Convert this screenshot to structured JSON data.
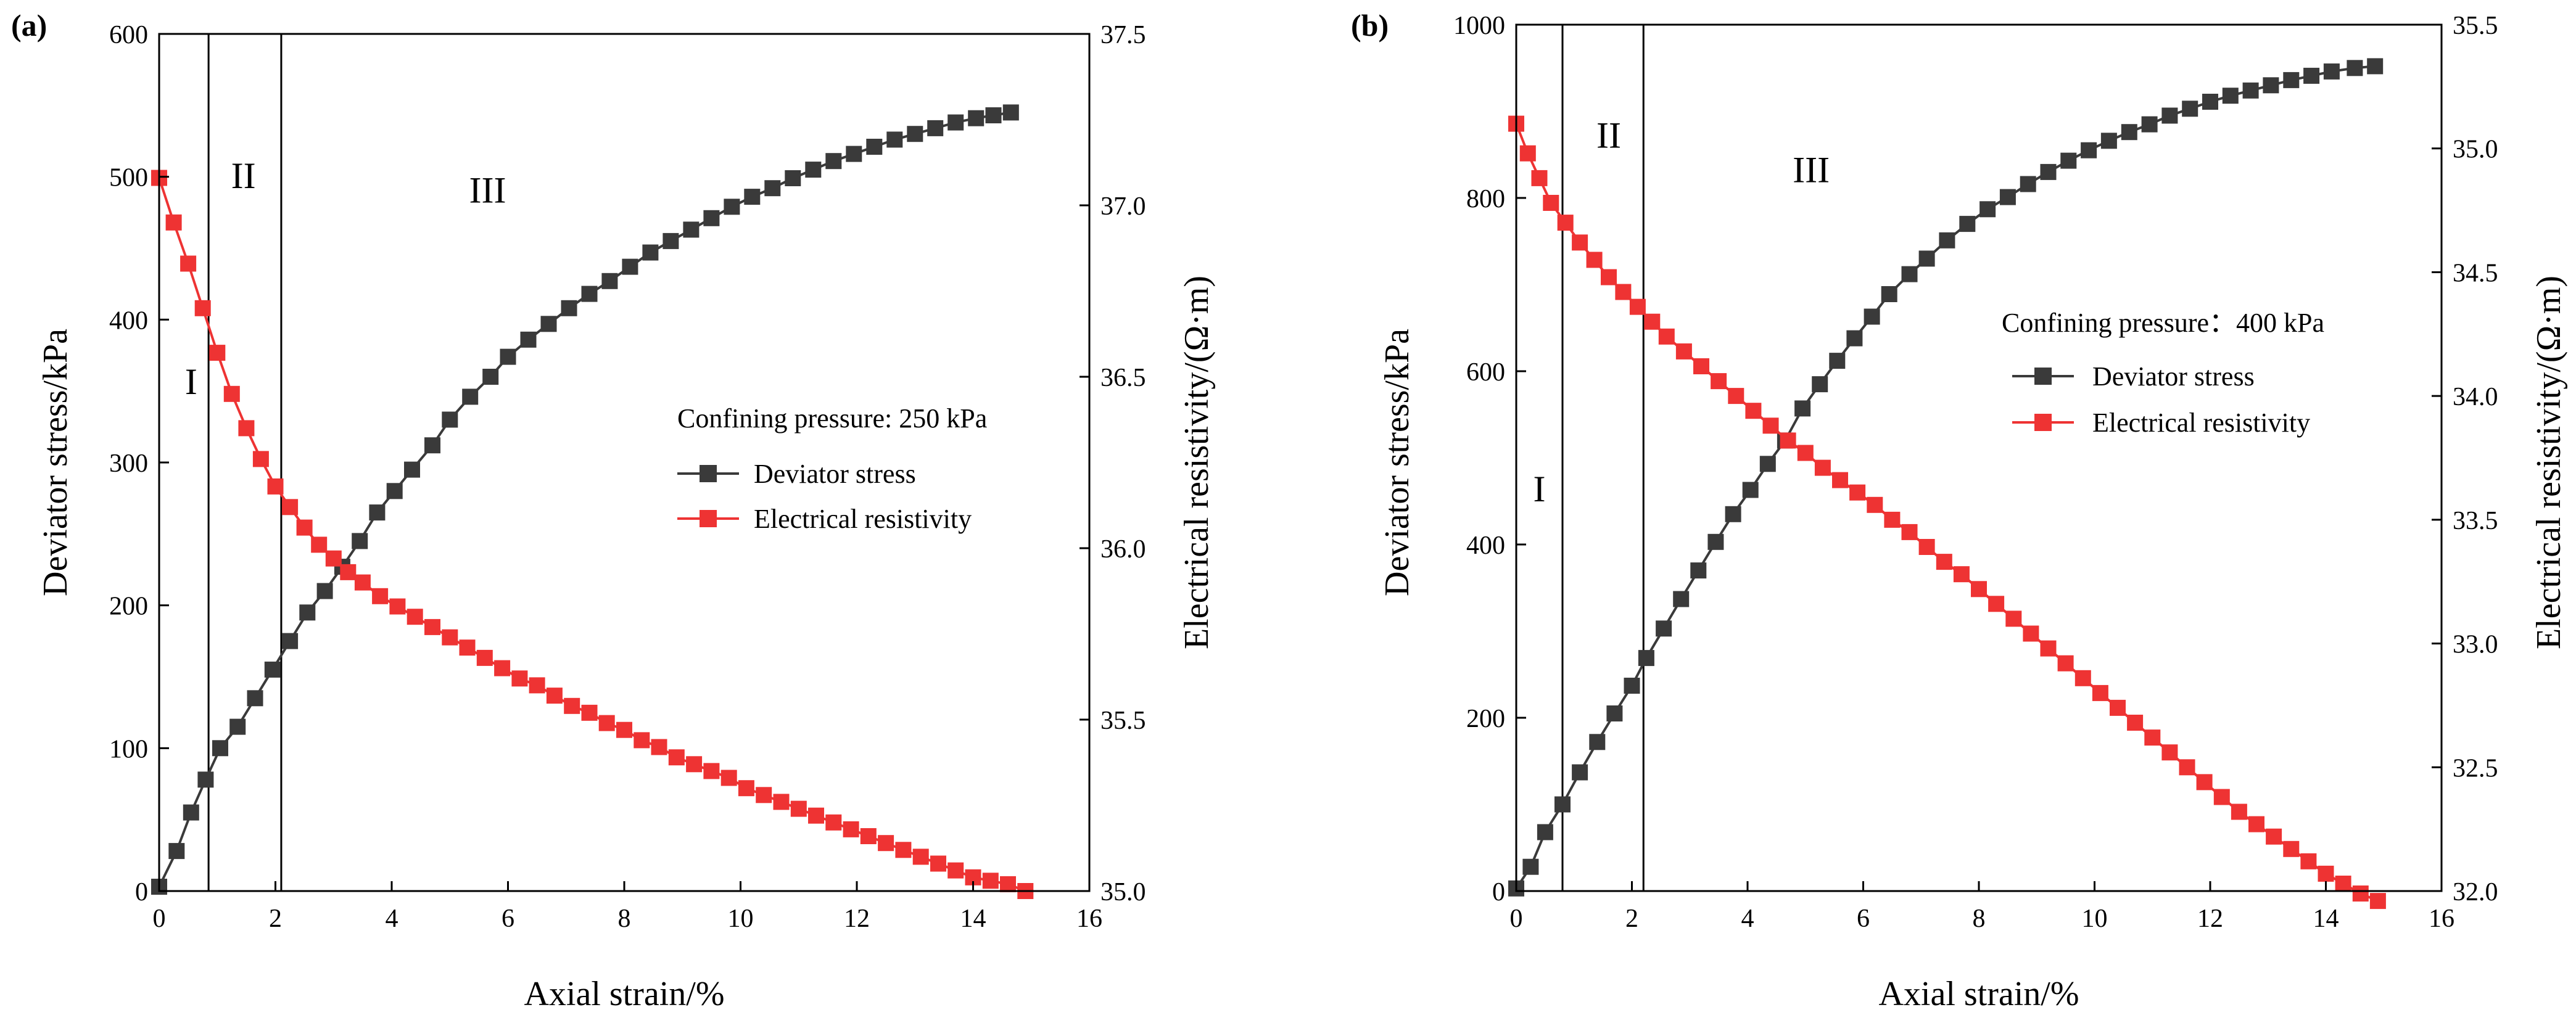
{
  "figure": {
    "description_labels": [
      "(a)",
      "(b)"
    ]
  },
  "colors": {
    "deviator": "#3a3a3a",
    "resistivity": "#ee3333",
    "axis": "#000000"
  },
  "chart_data": [
    {
      "type": "line",
      "panel_label": "(a)",
      "xlabel": "Axial strain/%",
      "ylabel_left": "Deviator stress/kPa",
      "ylabel_right": "Electrical resistivity/(Ω·m)",
      "xlim": [
        0,
        16
      ],
      "ylim_left": [
        0,
        600
      ],
      "ylim_right": [
        35.0,
        37.5
      ],
      "x_ticks": [
        "0",
        "2",
        "4",
        "6",
        "8",
        "10",
        "12",
        "14",
        "16"
      ],
      "y_left_ticks": [
        "0",
        "100",
        "200",
        "300",
        "400",
        "500",
        "600"
      ],
      "y_right_ticks": [
        "35.0",
        "35.5",
        "36.0",
        "36.5",
        "37.0",
        "37.5"
      ],
      "stage_boundaries": [
        0.85,
        2.1
      ],
      "stage_labels": [
        {
          "text": "I",
          "x": 0.55,
          "y_left": 348
        },
        {
          "text": "II",
          "x": 1.45,
          "y_left": 492
        },
        {
          "text": "III",
          "x": 5.65,
          "y_left": 482
        }
      ],
      "legend_title": "Confining pressure: 250 kPa",
      "series": [
        {
          "name": "Deviator stress",
          "axis": "left",
          "color": "#3a3a3a",
          "x": [
            0,
            0.3,
            0.55,
            0.8,
            1.05,
            1.35,
            1.65,
            1.95,
            2.25,
            2.55,
            2.85,
            3.15,
            3.45,
            3.75,
            4.05,
            4.35,
            4.7,
            5.0,
            5.35,
            5.7,
            6.0,
            6.35,
            6.7,
            7.05,
            7.4,
            7.75,
            8.1,
            8.45,
            8.8,
            9.15,
            9.5,
            9.85,
            10.2,
            10.55,
            10.9,
            11.25,
            11.6,
            11.95,
            12.3,
            12.65,
            13.0,
            13.35,
            13.7,
            14.05,
            14.35,
            14.65
          ],
          "y": [
            3,
            28,
            55,
            78,
            100,
            115,
            135,
            155,
            175,
            195,
            210,
            227,
            245,
            265,
            280,
            295,
            312,
            330,
            346,
            360,
            374,
            386,
            397,
            408,
            418,
            427,
            437,
            447,
            455,
            463,
            471,
            479,
            486,
            492,
            499,
            505,
            511,
            516,
            521,
            526,
            530,
            534,
            538,
            541,
            543,
            545
          ]
        },
        {
          "name": "Electrical resistivity",
          "axis": "right",
          "color": "#ee3333",
          "x": [
            0,
            0.25,
            0.5,
            0.75,
            1.0,
            1.25,
            1.5,
            1.75,
            2.0,
            2.25,
            2.5,
            2.75,
            3.0,
            3.25,
            3.5,
            3.8,
            4.1,
            4.4,
            4.7,
            5.0,
            5.3,
            5.6,
            5.9,
            6.2,
            6.5,
            6.8,
            7.1,
            7.4,
            7.7,
            8.0,
            8.3,
            8.6,
            8.9,
            9.2,
            9.5,
            9.8,
            10.1,
            10.4,
            10.7,
            11.0,
            11.3,
            11.6,
            11.9,
            12.2,
            12.5,
            12.8,
            13.1,
            13.4,
            13.7,
            14.0,
            14.3,
            14.6,
            14.9
          ],
          "y": [
            37.08,
            36.95,
            36.83,
            36.7,
            36.57,
            36.45,
            36.35,
            36.26,
            36.18,
            36.12,
            36.06,
            36.01,
            35.97,
            35.93,
            35.9,
            35.86,
            35.83,
            35.8,
            35.77,
            35.74,
            35.71,
            35.68,
            35.65,
            35.62,
            35.6,
            35.57,
            35.54,
            35.52,
            35.49,
            35.47,
            35.44,
            35.42,
            35.39,
            35.37,
            35.35,
            35.33,
            35.3,
            35.28,
            35.26,
            35.24,
            35.22,
            35.2,
            35.18,
            35.16,
            35.14,
            35.12,
            35.1,
            35.08,
            35.06,
            35.04,
            35.03,
            35.02,
            35.0
          ]
        }
      ]
    },
    {
      "type": "line",
      "panel_label": "(b)",
      "xlabel": "Axial strain/%",
      "ylabel_left": "Deviator stress/kPa",
      "ylabel_right": "Electrical resistivity/(Ω·m)",
      "xlim": [
        0,
        16
      ],
      "ylim_left": [
        0,
        1000
      ],
      "ylim_right": [
        32.0,
        35.5
      ],
      "x_ticks": [
        "0",
        "2",
        "4",
        "6",
        "8",
        "10",
        "12",
        "14",
        "16"
      ],
      "y_left_ticks": [
        "0",
        "200",
        "400",
        "600",
        "800",
        "1000"
      ],
      "y_right_ticks": [
        "32.0",
        "32.5",
        "33.0",
        "33.5",
        "34.0",
        "34.5",
        "35.0",
        "35.5"
      ],
      "stage_boundaries": [
        0.8,
        2.2
      ],
      "stage_labels": [
        {
          "text": "I",
          "x": 0.4,
          "y_left": 450
        },
        {
          "text": "II",
          "x": 1.6,
          "y_left": 858
        },
        {
          "text": "III",
          "x": 5.1,
          "y_left": 818
        }
      ],
      "legend_title": "Confining pressure：400 kPa",
      "series": [
        {
          "name": "Deviator stress",
          "axis": "left",
          "color": "#3a3a3a",
          "x": [
            0,
            0.25,
            0.5,
            0.8,
            1.1,
            1.4,
            1.7,
            2.0,
            2.25,
            2.55,
            2.85,
            3.15,
            3.45,
            3.75,
            4.05,
            4.35,
            4.65,
            4.95,
            5.25,
            5.55,
            5.85,
            6.15,
            6.45,
            6.8,
            7.1,
            7.45,
            7.8,
            8.15,
            8.5,
            8.85,
            9.2,
            9.55,
            9.9,
            10.25,
            10.6,
            10.95,
            11.3,
            11.65,
            12.0,
            12.35,
            12.7,
            13.05,
            13.4,
            13.75,
            14.1,
            14.5,
            14.85
          ],
          "y": [
            3,
            28,
            68,
            100,
            137,
            172,
            205,
            237,
            269,
            303,
            337,
            370,
            403,
            435,
            463,
            493,
            520,
            557,
            585,
            612,
            638,
            663,
            689,
            712,
            730,
            751,
            770,
            787,
            801,
            816,
            830,
            843,
            855,
            866,
            876,
            885,
            895,
            903,
            911,
            918,
            924,
            930,
            936,
            941,
            946,
            950,
            952
          ]
        },
        {
          "name": "Electrical resistivity",
          "axis": "right",
          "color": "#ee3333",
          "x": [
            0,
            0.2,
            0.4,
            0.6,
            0.85,
            1.1,
            1.35,
            1.6,
            1.85,
            2.1,
            2.35,
            2.6,
            2.9,
            3.2,
            3.5,
            3.8,
            4.1,
            4.4,
            4.7,
            5.0,
            5.3,
            5.6,
            5.9,
            6.2,
            6.5,
            6.8,
            7.1,
            7.4,
            7.7,
            8.0,
            8.3,
            8.6,
            8.9,
            9.2,
            9.5,
            9.8,
            10.1,
            10.4,
            10.7,
            11.0,
            11.3,
            11.6,
            11.9,
            12.2,
            12.5,
            12.8,
            13.1,
            13.4,
            13.7,
            14.0,
            14.3,
            14.6,
            14.9
          ],
          "y": [
            35.1,
            34.98,
            34.88,
            34.78,
            34.7,
            34.62,
            34.55,
            34.48,
            34.42,
            34.36,
            34.3,
            34.24,
            34.18,
            34.12,
            34.06,
            34.0,
            33.94,
            33.88,
            33.82,
            33.77,
            33.71,
            33.66,
            33.61,
            33.56,
            33.5,
            33.45,
            33.39,
            33.33,
            33.28,
            33.22,
            33.16,
            33.1,
            33.04,
            32.98,
            32.92,
            32.86,
            32.8,
            32.74,
            32.68,
            32.62,
            32.56,
            32.5,
            32.44,
            32.38,
            32.32,
            32.27,
            32.22,
            32.17,
            32.12,
            32.07,
            32.03,
            31.99,
            31.96
          ]
        }
      ]
    }
  ]
}
